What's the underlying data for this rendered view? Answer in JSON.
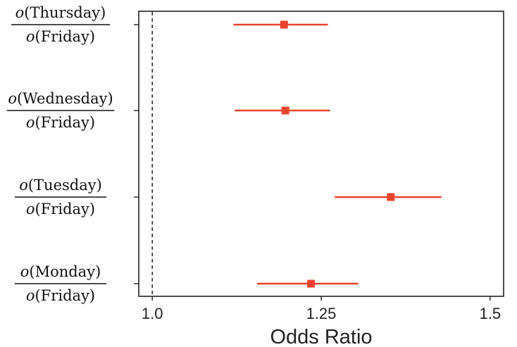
{
  "chart_data": {
    "type": "forest",
    "title": "",
    "xlabel": "Odds Ratio",
    "xlim": [
      0.98,
      1.52
    ],
    "xticks": [
      1.0,
      1.25,
      1.5
    ],
    "xtick_labels": [
      "1.0",
      "1.25",
      "1.5"
    ],
    "reference_line": 1.0,
    "marker_color": "#e8432e",
    "rows": [
      {
        "numerator": "(Thursday)",
        "denominator": "(Friday)",
        "estimate": 1.195,
        "lower": 1.12,
        "upper": 1.26
      },
      {
        "numerator": "(Wednesday)",
        "denominator": "(Friday)",
        "estimate": 1.197,
        "lower": 1.122,
        "upper": 1.263
      },
      {
        "numerator": "(Tuesday)",
        "denominator": "(Friday)",
        "estimate": 1.353,
        "lower": 1.27,
        "upper": 1.428
      },
      {
        "numerator": "(Monday)",
        "denominator": "(Friday)",
        "estimate": 1.235,
        "lower": 1.155,
        "upper": 1.305
      }
    ]
  }
}
